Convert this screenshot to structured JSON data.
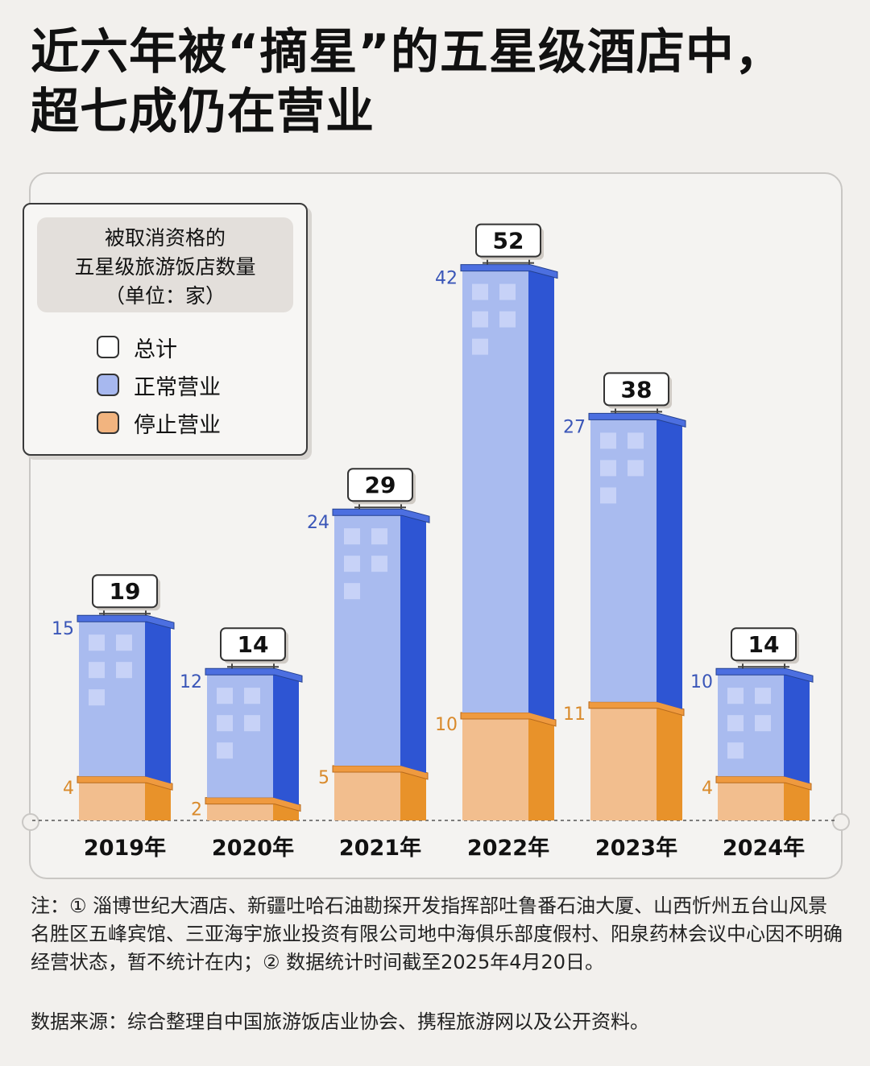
{
  "title": {
    "line1": "近六年被“摘星”的五星级酒店中，",
    "line2": "超七成仍在营业"
  },
  "legend": {
    "title_line1": "被取消资格的",
    "title_line2": "五星级旅游饭店数量",
    "title_line3": "（单位：家）",
    "items": [
      {
        "label": "总计",
        "color": "#ffffff"
      },
      {
        "label": "正常营业",
        "color": "#a7b8ef"
      },
      {
        "label": "停止营业",
        "color": "#f2b47f"
      }
    ]
  },
  "chart_data": {
    "type": "bar",
    "stacked": true,
    "categories": [
      "2019年",
      "2020年",
      "2021年",
      "2022年",
      "2023年",
      "2024年"
    ],
    "series": [
      {
        "name": "停止营业",
        "values": [
          4,
          2,
          5,
          10,
          11,
          4
        ],
        "color": "#f2b47f"
      },
      {
        "name": "正常营业",
        "values": [
          15,
          12,
          24,
          42,
          27,
          10
        ],
        "color": "#a7b8ef"
      }
    ],
    "totals": [
      19,
      14,
      29,
      52,
      38,
      14
    ],
    "title": "近六年被“摘星”的五星级酒店中，超七成仍在营业"
  },
  "notes": {
    "text": "注：① 淄博世纪大酒店、新疆吐哈石油勘探开发指挥部吐鲁番石油大厦、山西忻州五台山风景名胜区五峰宾馆、三亚海宇旅业投资有限公司地中海俱乐部度假村、阳泉药林会议中心因不明确经营状态，暂不统计在内；② 数据统计时间截至2025年4月20日。",
    "source": "数据来源：综合整理自中国旅游饭店业协会、携程旅游网以及公开资料。"
  }
}
